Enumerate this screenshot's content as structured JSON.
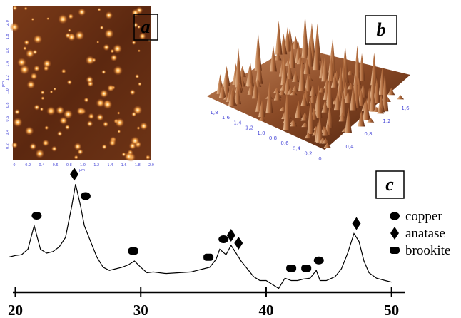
{
  "panels": {
    "a": {
      "label": "a",
      "unit_label": "µm",
      "yticks": [
        "0.2",
        "0.4",
        "0.6",
        "0.8",
        "1.0",
        "1.2",
        "1.4",
        "1.6",
        "1.8",
        "2.0"
      ],
      "xticks": [
        "0",
        "0.2",
        "0.4",
        "0.6",
        "0.8",
        "1.0",
        "1.2",
        "1.4",
        "1.6",
        "1.8",
        "2.0"
      ]
    },
    "b": {
      "label": "b",
      "left_ticks": [
        "1,8",
        "1,6",
        "1,4",
        "1,2",
        "1,0",
        "0,8",
        "0,6",
        "0,4",
        "0,2",
        "0"
      ],
      "right_ticks": [
        "0,4",
        "0,8",
        "1,2",
        "1,6"
      ]
    }
  },
  "chart_data": {
    "type": "line",
    "label": "c",
    "color": "#000000",
    "xlim": [
      19.8,
      51.1
    ],
    "xticks": [
      20,
      30,
      40,
      50
    ],
    "ylim": [
      0,
      150
    ],
    "x": [
      19.5,
      20,
      20.5,
      21,
      21.5,
      22,
      22.5,
      23,
      23.5,
      24,
      24.5,
      24.8,
      25.2,
      25.5,
      26,
      26.5,
      27,
      27.5,
      28,
      28.5,
      29,
      29.5,
      30,
      30.5,
      31,
      32,
      33,
      34,
      35,
      35.5,
      36,
      36.3,
      36.8,
      37.2,
      37.6,
      38,
      38.5,
      39,
      39.5,
      40,
      40.5,
      41,
      41.5,
      42,
      42.5,
      43,
      43.5,
      44,
      44.3,
      44.8,
      45.5,
      46,
      46.5,
      47,
      47.4,
      47.8,
      48.2,
      48.8,
      49.5,
      50
    ],
    "values": [
      45,
      47,
      48,
      55,
      85,
      55,
      50,
      52,
      58,
      70,
      110,
      138,
      110,
      85,
      65,
      45,
      32,
      28,
      30,
      32,
      35,
      40,
      32,
      25,
      26,
      24,
      25,
      26,
      30,
      32,
      42,
      55,
      48,
      60,
      50,
      40,
      30,
      20,
      15,
      15,
      10,
      5,
      18,
      15,
      15,
      17,
      18,
      28,
      15,
      15,
      20,
      30,
      50,
      75,
      65,
      40,
      25,
      18,
      15,
      13
    ],
    "phases": [
      {
        "name": "copper",
        "shape": "ellipse"
      },
      {
        "name": "anatase",
        "shape": "diamond"
      },
      {
        "name": "brookite",
        "shape": "octagon"
      }
    ],
    "markers": [
      {
        "x": 21.7,
        "phase": 0
      },
      {
        "x": 24.7,
        "phase": 1
      },
      {
        "x": 25.6,
        "phase": 0
      },
      {
        "x": 29.4,
        "phase": 2
      },
      {
        "x": 35.4,
        "phase": 2
      },
      {
        "x": 36.6,
        "phase": 0
      },
      {
        "x": 37.2,
        "phase": 1
      },
      {
        "x": 37.8,
        "phase": 1
      },
      {
        "x": 42.0,
        "phase": 2
      },
      {
        "x": 43.2,
        "phase": 2
      },
      {
        "x": 44.2,
        "phase": 0
      },
      {
        "x": 47.2,
        "phase": 1
      }
    ]
  }
}
